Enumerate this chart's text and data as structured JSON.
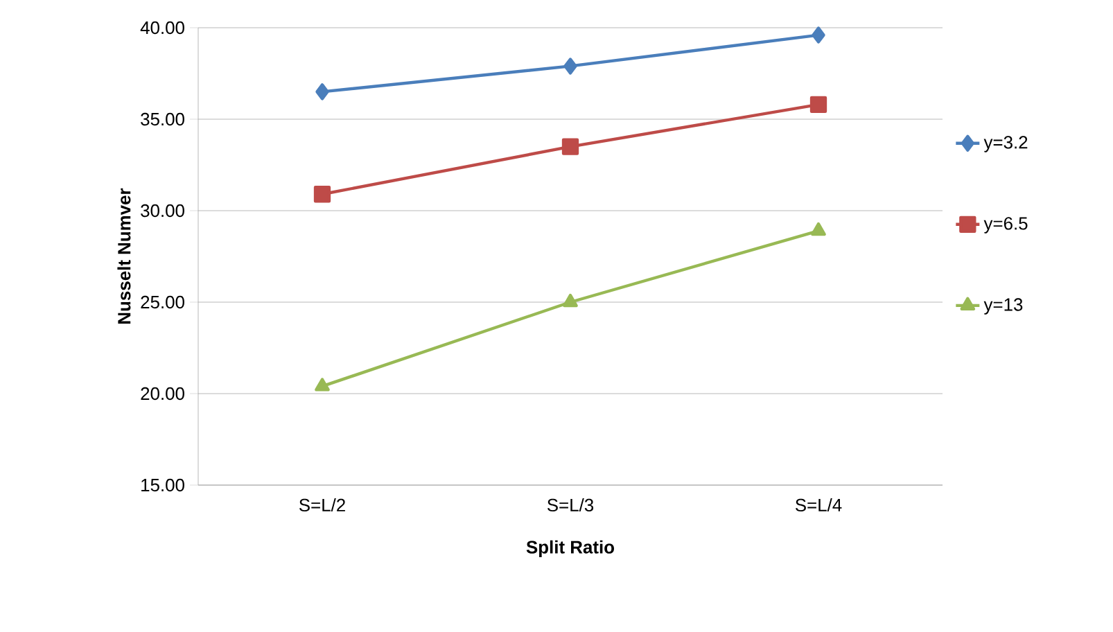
{
  "chart_data": {
    "type": "line",
    "xlabel": "Split Ratio",
    "ylabel": "Nusselt Numver",
    "categories": [
      "S=L/2",
      "S=L/3",
      "S=L/4"
    ],
    "series": [
      {
        "name": "y=3.2",
        "color": "#4a7ebb",
        "marker": "diamond",
        "values": [
          36.5,
          37.9,
          39.6
        ]
      },
      {
        "name": "y=6.5",
        "color": "#be4b48",
        "marker": "square",
        "values": [
          30.9,
          33.5,
          35.8
        ]
      },
      {
        "name": "y=13",
        "color": "#98b954",
        "marker": "triangle",
        "values": [
          20.4,
          25.0,
          28.9
        ]
      }
    ],
    "ylim": [
      15,
      40
    ],
    "yticks": [
      {
        "value": 15,
        "label": "15.00"
      },
      {
        "value": 20,
        "label": "20.00"
      },
      {
        "value": 25,
        "label": "25.00"
      },
      {
        "value": 30,
        "label": "30.00"
      },
      {
        "value": 35,
        "label": "35.00"
      },
      {
        "value": 40,
        "label": "40.00"
      }
    ],
    "grid": "y",
    "legend": "right",
    "line_style": "solid"
  }
}
